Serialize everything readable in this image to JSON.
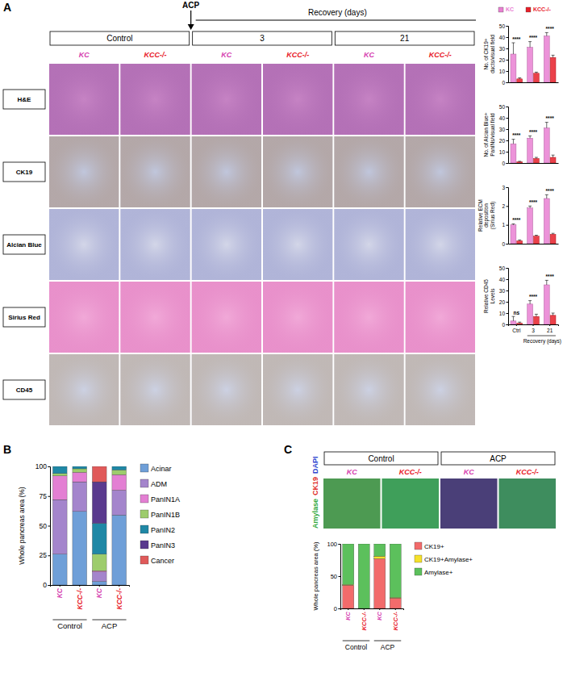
{
  "figure": {
    "panel_labels": [
      "A",
      "B",
      "C"
    ],
    "A": {
      "arrow_label": "ACP",
      "header": "Recovery (days)",
      "groups": [
        "Control",
        "3",
        "21"
      ],
      "columns": [
        "KC",
        "KCC-/-",
        "KC",
        "KCC-/-",
        "KC",
        "KCC-/-"
      ],
      "rows": [
        "H&E",
        "CK19",
        "Alcian Blue",
        "Sirius Red",
        "CD45"
      ]
    },
    "C": {
      "groups": [
        "Control",
        "ACP"
      ],
      "columns": [
        "KC",
        "KCC-/-",
        "KC",
        "KCC-/-"
      ],
      "stains": [
        {
          "text": "Amylase",
          "color": "#2fa83a"
        },
        {
          "text": "CK19",
          "color": "#e0302a"
        },
        {
          "text": "DAPI",
          "color": "#3048d0"
        }
      ]
    }
  },
  "chart_data": [
    {
      "type": "bar",
      "ylabel": [
        "No. of CK19+",
        "ducts/visual field"
      ],
      "categories": [
        "Ctrl",
        "3",
        "21"
      ],
      "series": [
        {
          "name": "KC",
          "color": "#e980d2",
          "values": [
            25,
            31,
            41
          ],
          "errors": [
            10,
            5,
            3
          ]
        },
        {
          "name": "KCC-/-",
          "color": "#e8202a",
          "values": [
            3,
            8,
            22
          ],
          "errors": [
            1,
            1,
            2
          ]
        }
      ],
      "ylim": [
        0,
        50
      ],
      "yticks": [
        0,
        10,
        20,
        30,
        40,
        50
      ],
      "annotations": [
        "****",
        "****",
        "****"
      ],
      "legend": "top",
      "tick_labels": "y"
    },
    {
      "type": "bar",
      "ylabel": [
        "No. of Alcian Blue+",
        "PanINs/visual field"
      ],
      "categories": [
        "Ctrl",
        "3",
        "21"
      ],
      "series": [
        {
          "color": "#e980d2",
          "values": [
            17,
            22,
            31
          ],
          "errors": [
            4,
            2,
            5
          ]
        },
        {
          "color": "#e8202a",
          "values": [
            1,
            4,
            5
          ],
          "errors": [
            0.5,
            1,
            2
          ]
        }
      ],
      "ylim": [
        0,
        50
      ],
      "yticks": [
        0,
        10,
        20,
        30,
        40,
        50
      ],
      "annotations": [
        "****",
        "****",
        "****"
      ],
      "tick_labels": "y"
    },
    {
      "type": "bar",
      "ylabel": [
        "Relative ECM",
        "deposition",
        "(Sirius Red)"
      ],
      "categories": [
        "Ctrl",
        "3",
        "21"
      ],
      "series": [
        {
          "color": "#e980d2",
          "values": [
            1.0,
            1.9,
            2.4
          ],
          "errors": [
            0.05,
            0.1,
            0.2
          ]
        },
        {
          "color": "#e8202a",
          "values": [
            0.15,
            0.4,
            0.5
          ],
          "errors": [
            0.05,
            0.05,
            0.05
          ]
        }
      ],
      "ylim": [
        0,
        3
      ],
      "yticks": [
        0,
        1,
        2,
        3
      ],
      "annotations": [
        "****",
        "****",
        "****"
      ],
      "tick_labels": "y"
    },
    {
      "type": "bar",
      "ylabel": [
        "Relative CD45",
        "Levels"
      ],
      "xlabel": "Recovery (days)",
      "categories": [
        "Ctrl",
        "3",
        "21"
      ],
      "series": [
        {
          "color": "#e980d2",
          "values": [
            3,
            18,
            35
          ],
          "errors": [
            4,
            3,
            4
          ]
        },
        {
          "color": "#e8202a",
          "values": [
            1,
            7,
            8
          ],
          "errors": [
            1,
            2,
            2
          ]
        }
      ],
      "ylim": [
        0,
        50
      ],
      "yticks": [
        0,
        10,
        20,
        30,
        40,
        50
      ],
      "annotations": [
        "ns",
        "****",
        "****"
      ]
    },
    {
      "type": "bar",
      "stacked": true,
      "ylabel": "Whole pancreas area (%)",
      "categories": [
        "KC",
        "KCC-/-",
        "KC",
        "KCC-/-"
      ],
      "groups": [
        "Control",
        "ACP"
      ],
      "series": [
        {
          "name": "Acinar",
          "color": "#6f9fd8",
          "values": [
            26,
            62,
            3,
            59
          ]
        },
        {
          "name": "ADM",
          "color": "#a485cc",
          "values": [
            46,
            25,
            8,
            21
          ]
        },
        {
          "name": "PanIN1A",
          "color": "#e37fd3",
          "values": [
            20,
            8,
            1,
            13
          ]
        },
        {
          "name": "PanIN1B",
          "color": "#9dcc6c",
          "values": [
            2,
            3,
            14,
            4
          ]
        },
        {
          "name": "PanIN2",
          "color": "#1f88a6",
          "values": [
            6,
            2,
            26,
            3
          ]
        },
        {
          "name": "PanIN3",
          "color": "#5a3a8e",
          "values": [
            0,
            0,
            35,
            0
          ]
        },
        {
          "name": "Cancer",
          "color": "#e05a5a",
          "values": [
            0,
            0,
            13,
            0
          ]
        }
      ],
      "ylim": [
        0,
        100
      ],
      "yticks": [
        0,
        25,
        50,
        75,
        100
      ],
      "legend": "right"
    },
    {
      "type": "bar",
      "stacked": true,
      "ylabel": "Whole pancreas area (%)",
      "categories": [
        "KC",
        "KCC-/-",
        "KC",
        "KCC-/-"
      ],
      "groups": [
        "Control",
        "ACP"
      ],
      "series": [
        {
          "name": "CK19+",
          "color": "#f26b6b",
          "values": [
            36,
            0,
            77,
            16
          ]
        },
        {
          "name": "CK19+Amylase+",
          "color": "#f5e12a",
          "values": [
            1,
            0,
            4,
            1
          ]
        },
        {
          "name": "Amylase+",
          "color": "#5cc05c",
          "values": [
            63,
            100,
            19,
            83
          ]
        }
      ],
      "ylim": [
        0,
        100
      ],
      "yticks": [
        0,
        50,
        100
      ],
      "legend": "right"
    }
  ]
}
